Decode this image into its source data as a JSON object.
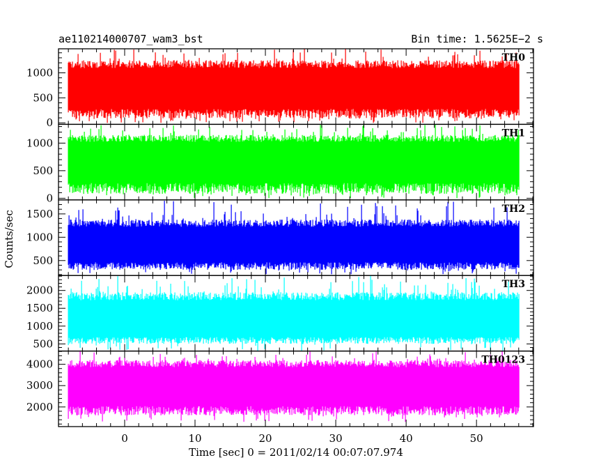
{
  "header": {
    "left_title": "ae110214000707_wam3_bst",
    "right_title": "Bin time: 1.5625E−2 s"
  },
  "ylabel": "Counts/sec",
  "xlabel": "Time [sec] 0 = 2011/02/14 00:07:07.974",
  "chart_data": {
    "type": "line",
    "x_range": [
      -8,
      56
    ],
    "xlim": [
      -9.4,
      58.1
    ],
    "x_ticks": [
      0,
      10,
      20,
      30,
      40,
      50
    ],
    "x_tick_labels": [
      "0",
      "10",
      "20",
      "30",
      "40",
      "50"
    ],
    "bin_time": 0.015625,
    "grid": false,
    "panels": [
      {
        "name": "TH0",
        "color": "#ff0000",
        "ylim": [
          -30,
          1480
        ],
        "ticks": [
          0,
          500,
          1000
        ],
        "tick_labels": [
          "0",
          "500",
          "1000"
        ],
        "mean": 630,
        "typical_low": 90,
        "typical_high": 1250,
        "max": 1480,
        "min": 0
      },
      {
        "name": "TH1",
        "color": "#00ff00",
        "ylim": [
          -30,
          1340
        ],
        "ticks": [
          0,
          500,
          1000
        ],
        "tick_labels": [
          "0",
          "500",
          "1000"
        ],
        "mean": 640,
        "typical_low": 80,
        "typical_high": 1150,
        "max": 1340,
        "min": 0
      },
      {
        "name": "TH2",
        "color": "#0000ff",
        "ylim": [
          180,
          1800
        ],
        "ticks": [
          500,
          1000,
          1500
        ],
        "tick_labels": [
          "500",
          "1000",
          "1500"
        ],
        "mean": 760,
        "typical_low": 300,
        "typical_high": 1380,
        "max": 1800,
        "min": 200
      },
      {
        "name": "TH3",
        "color": "#00ffff",
        "ylim": [
          300,
          2420
        ],
        "ticks": [
          500,
          1000,
          1500,
          2000
        ],
        "tick_labels": [
          "500",
          "1000",
          "1500",
          "2000"
        ],
        "mean": 1050,
        "typical_low": 500,
        "typical_high": 1950,
        "max": 2420,
        "min": 300
      },
      {
        "name": "TH0123",
        "color": "#ff00ff",
        "ylim": [
          1080,
          4620
        ],
        "ticks": [
          2000,
          3000,
          4000
        ],
        "tick_labels": [
          "2000",
          "3000",
          "4000"
        ],
        "mean": 2850,
        "typical_low": 1600,
        "typical_high": 4200,
        "max": 4620,
        "min": 1300
      }
    ]
  }
}
